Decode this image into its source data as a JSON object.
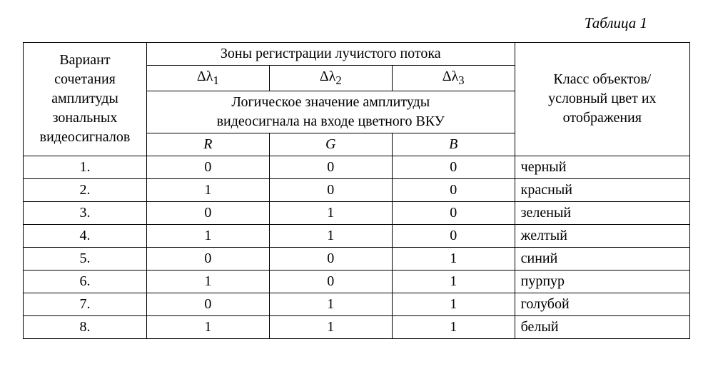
{
  "caption": "Таблица 1",
  "header": {
    "col1_l1": "Вариант",
    "col1_l2": "сочетания",
    "col1_l3": "амплитуды",
    "col1_l4": "зональных",
    "col1_l5": "видеосигналов",
    "zones_title": "Зоны регистрации лучистого потока",
    "dl1": "Δλ",
    "dl1_sub": "1",
    "dl2": "Δλ",
    "dl2_sub": "2",
    "dl3": "Δλ",
    "dl3_sub": "3",
    "logic_l1": "Логическое значение амплитуды",
    "logic_l2": "видеосигнала на входе цветного ВКУ",
    "r": "R",
    "g": "G",
    "b": "B",
    "class_l1": "Класс объектов/",
    "class_l2": "условный цвет  их",
    "class_l3": "отображения"
  },
  "rows": [
    {
      "n": "1.",
      "r": "0",
      "g": "0",
      "b": "0",
      "color": " черный"
    },
    {
      "n": "2.",
      "r": "1",
      "g": "0",
      "b": "0",
      "color": " красный"
    },
    {
      "n": "3.",
      "r": "0",
      "g": "1",
      "b": "0",
      "color": "зеленый"
    },
    {
      "n": "4.",
      "r": "1",
      "g": "1",
      "b": "0",
      "color": "желтый"
    },
    {
      "n": "5.",
      "r": "0",
      "g": "0",
      "b": "1",
      "color": "синий"
    },
    {
      "n": "6.",
      "r": "1",
      "g": "0",
      "b": "1",
      "color": "пурпур"
    },
    {
      "n": "7.",
      "r": "0",
      "g": "1",
      "b": "1",
      "color": "голубой"
    },
    {
      "n": "8.",
      "r": "1",
      "g": "1",
      "b": "1",
      "color": "белый"
    }
  ]
}
